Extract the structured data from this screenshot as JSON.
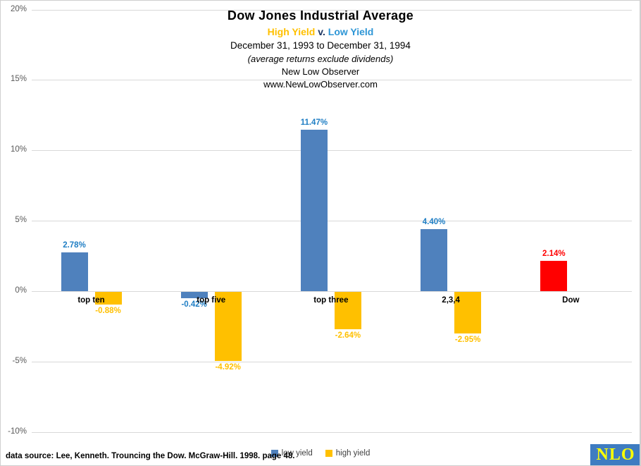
{
  "header": {
    "title": "Dow Jones Industrial Average",
    "subtitle": {
      "high": "High Yield",
      "versus": "v.",
      "low": "Low Yield",
      "high_color": "#FFC000",
      "versus_color": "#1F3864",
      "low_color": "#2E96D6"
    },
    "date_range": "December 31, 1993 to December 31, 1994",
    "note": "(average returns exclude dividends)",
    "site_name": "New Low Observer",
    "site_url": "www.NewLowObserver.com"
  },
  "chart_data": {
    "type": "bar",
    "title": "Dow Jones Industrial Average",
    "subtitle": "High Yield v. Low Yield",
    "categories": [
      "top ten",
      "top five",
      "top three",
      "2,3,4",
      "Dow"
    ],
    "series": [
      {
        "name": "low yield",
        "color": "#4F81BD",
        "label_color": "#1F7EC4",
        "values": [
          2.78,
          -0.42,
          11.47,
          4.4,
          null
        ]
      },
      {
        "name": "high yield",
        "color": "#FFC000",
        "label_color": "#FFC000",
        "values": [
          -0.88,
          -4.92,
          -2.64,
          -2.95,
          null
        ]
      },
      {
        "name": "Dow",
        "color": "#FF0000",
        "label_color": "#FF0000",
        "values": [
          null,
          null,
          null,
          null,
          2.14
        ],
        "in_legend": false
      }
    ],
    "value_label_format": "0.00%",
    "xlabel": "",
    "ylabel": "",
    "ylim": [
      -10,
      20
    ],
    "grid": true,
    "gridline_color": "#D9D9D9",
    "legend_position": "bottom",
    "yticks": [
      {
        "value": 20,
        "label": "20%"
      },
      {
        "value": 15,
        "label": "15%"
      },
      {
        "value": 10,
        "label": "10%"
      },
      {
        "value": 5,
        "label": "5%"
      },
      {
        "value": 0,
        "label": "0%"
      },
      {
        "value": -5,
        "label": "-5%"
      },
      {
        "value": -10,
        "label": "-10%"
      }
    ]
  },
  "legend": {
    "items": [
      {
        "label": "low yield",
        "color": "#4F81BD"
      },
      {
        "label": "high yield",
        "color": "#FFC000"
      }
    ]
  },
  "footer": {
    "source": "data source: Lee, Kenneth. Trouncing the Dow. McGraw-Hill. 1998. page 48."
  },
  "logo": {
    "text": "NLO",
    "bg_color": "#3E7CC1",
    "text_color": "#FFFF00"
  }
}
